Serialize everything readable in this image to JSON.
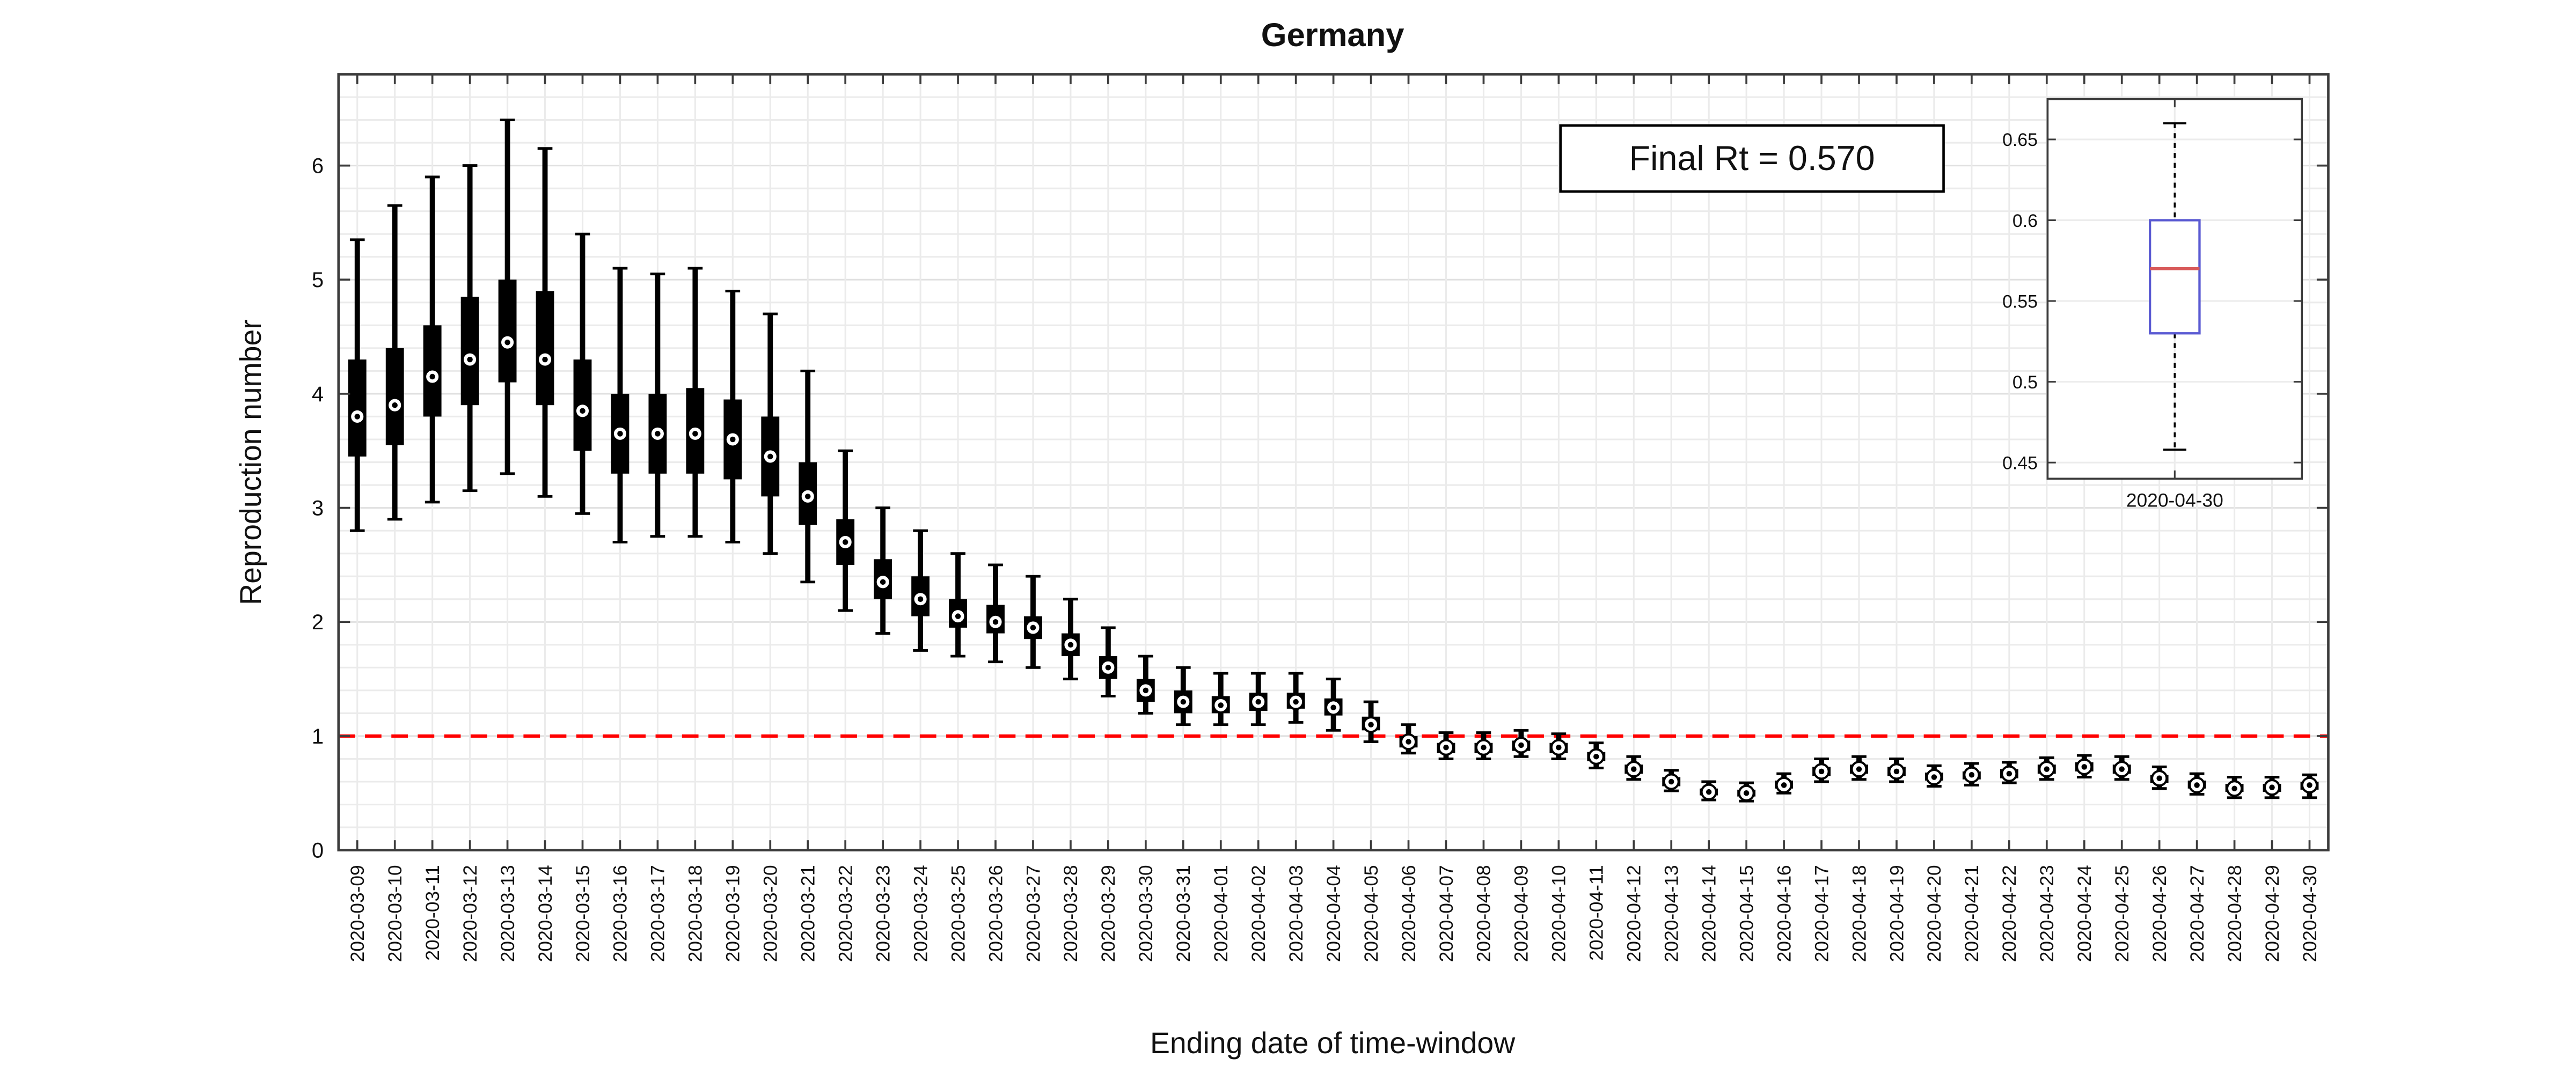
{
  "chart_data": {
    "type": "boxplot",
    "title": "Germany",
    "xlabel": "Ending date of time-window",
    "ylabel": "Reproduction number",
    "annotation": "Final Rt = 0.570",
    "ylim": [
      0,
      6.8
    ],
    "yticks": [
      0,
      1,
      2,
      3,
      4,
      5,
      6
    ],
    "minor_grid_step": 0.2,
    "grid": true,
    "reference_line": {
      "y": 1.0,
      "color": "#ff0000",
      "style": "dashed"
    },
    "box_value_order": [
      "whisker_low",
      "q1",
      "median",
      "q3",
      "whisker_high"
    ],
    "colors": {
      "box": "#000000",
      "whisker": "#000000",
      "median_marker_fill": "#ffffff",
      "median_marker_dot": "#000000",
      "reference": "#ff0000"
    },
    "categories": [
      "2020-03-09",
      "2020-03-10",
      "2020-03-11",
      "2020-03-12",
      "2020-03-13",
      "2020-03-14",
      "2020-03-15",
      "2020-03-16",
      "2020-03-17",
      "2020-03-18",
      "2020-03-19",
      "2020-03-20",
      "2020-03-21",
      "2020-03-22",
      "2020-03-23",
      "2020-03-24",
      "2020-03-25",
      "2020-03-26",
      "2020-03-27",
      "2020-03-28",
      "2020-03-29",
      "2020-03-30",
      "2020-03-31",
      "2020-04-01",
      "2020-04-02",
      "2020-04-03",
      "2020-04-04",
      "2020-04-05",
      "2020-04-06",
      "2020-04-07",
      "2020-04-08",
      "2020-04-09",
      "2020-04-10",
      "2020-04-11",
      "2020-04-12",
      "2020-04-13",
      "2020-04-14",
      "2020-04-15",
      "2020-04-16",
      "2020-04-17",
      "2020-04-18",
      "2020-04-19",
      "2020-04-20",
      "2020-04-21",
      "2020-04-22",
      "2020-04-23",
      "2020-04-24",
      "2020-04-25",
      "2020-04-26",
      "2020-04-27",
      "2020-04-28",
      "2020-04-29",
      "2020-04-30"
    ],
    "boxes": [
      [
        2.8,
        3.45,
        3.8,
        4.3,
        5.35
      ],
      [
        2.9,
        3.55,
        3.9,
        4.4,
        5.65
      ],
      [
        3.05,
        3.8,
        4.15,
        4.6,
        5.9
      ],
      [
        3.15,
        3.9,
        4.3,
        4.85,
        6.0
      ],
      [
        3.3,
        4.1,
        4.45,
        5.0,
        6.4
      ],
      [
        3.1,
        3.9,
        4.3,
        4.9,
        6.15
      ],
      [
        2.95,
        3.5,
        3.85,
        4.3,
        5.4
      ],
      [
        2.7,
        3.3,
        3.65,
        4.0,
        5.1
      ],
      [
        2.75,
        3.3,
        3.65,
        4.0,
        5.05
      ],
      [
        2.75,
        3.3,
        3.65,
        4.05,
        5.1
      ],
      [
        2.7,
        3.25,
        3.6,
        3.95,
        4.9
      ],
      [
        2.6,
        3.1,
        3.45,
        3.8,
        4.7
      ],
      [
        2.35,
        2.85,
        3.1,
        3.4,
        4.2
      ],
      [
        2.1,
        2.5,
        2.7,
        2.9,
        3.5
      ],
      [
        1.9,
        2.2,
        2.35,
        2.55,
        3.0
      ],
      [
        1.75,
        2.05,
        2.2,
        2.4,
        2.8
      ],
      [
        1.7,
        1.95,
        2.05,
        2.2,
        2.6
      ],
      [
        1.65,
        1.9,
        2.0,
        2.15,
        2.5
      ],
      [
        1.6,
        1.85,
        1.95,
        2.05,
        2.4
      ],
      [
        1.5,
        1.7,
        1.8,
        1.9,
        2.2
      ],
      [
        1.35,
        1.5,
        1.6,
        1.7,
        1.95
      ],
      [
        1.2,
        1.3,
        1.4,
        1.5,
        1.7
      ],
      [
        1.1,
        1.2,
        1.3,
        1.4,
        1.6
      ],
      [
        1.1,
        1.2,
        1.27,
        1.35,
        1.55
      ],
      [
        1.1,
        1.22,
        1.3,
        1.38,
        1.55
      ],
      [
        1.12,
        1.24,
        1.3,
        1.38,
        1.55
      ],
      [
        1.05,
        1.18,
        1.25,
        1.33,
        1.5
      ],
      [
        0.95,
        1.05,
        1.1,
        1.17,
        1.3
      ],
      [
        0.85,
        0.9,
        0.95,
        1.0,
        1.1
      ],
      [
        0.8,
        0.85,
        0.9,
        0.94,
        1.03
      ],
      [
        0.8,
        0.85,
        0.9,
        0.94,
        1.03
      ],
      [
        0.82,
        0.87,
        0.92,
        0.96,
        1.05
      ],
      [
        0.8,
        0.85,
        0.9,
        0.94,
        1.02
      ],
      [
        0.72,
        0.78,
        0.82,
        0.86,
        0.94
      ],
      [
        0.62,
        0.67,
        0.71,
        0.75,
        0.82
      ],
      [
        0.52,
        0.56,
        0.6,
        0.64,
        0.7
      ],
      [
        0.44,
        0.48,
        0.51,
        0.54,
        0.6
      ],
      [
        0.43,
        0.47,
        0.5,
        0.53,
        0.59
      ],
      [
        0.5,
        0.54,
        0.57,
        0.61,
        0.67
      ],
      [
        0.6,
        0.65,
        0.69,
        0.73,
        0.8
      ],
      [
        0.62,
        0.67,
        0.71,
        0.75,
        0.82
      ],
      [
        0.6,
        0.65,
        0.69,
        0.73,
        0.8
      ],
      [
        0.56,
        0.61,
        0.64,
        0.68,
        0.74
      ],
      [
        0.57,
        0.62,
        0.66,
        0.69,
        0.76
      ],
      [
        0.59,
        0.63,
        0.67,
        0.71,
        0.77
      ],
      [
        0.62,
        0.67,
        0.71,
        0.75,
        0.81
      ],
      [
        0.64,
        0.69,
        0.73,
        0.77,
        0.83
      ],
      [
        0.62,
        0.67,
        0.71,
        0.75,
        0.82
      ],
      [
        0.54,
        0.59,
        0.63,
        0.66,
        0.73
      ],
      [
        0.49,
        0.54,
        0.57,
        0.61,
        0.67
      ],
      [
        0.46,
        0.51,
        0.54,
        0.58,
        0.64
      ],
      [
        0.46,
        0.51,
        0.55,
        0.58,
        0.64
      ],
      [
        0.46,
        0.53,
        0.57,
        0.6,
        0.66
      ]
    ],
    "inset": {
      "type": "boxplot",
      "categories": [
        "2020-04-30"
      ],
      "ylim": [
        0.44,
        0.675
      ],
      "yticks": [
        0.45,
        0.5,
        0.55,
        0.6,
        0.65
      ],
      "boxes": [
        [
          0.458,
          0.53,
          0.57,
          0.6,
          0.66
        ]
      ],
      "colors": {
        "box": "#5a5ad2",
        "median": "#d85a5a",
        "whisker": "#000000"
      }
    }
  }
}
